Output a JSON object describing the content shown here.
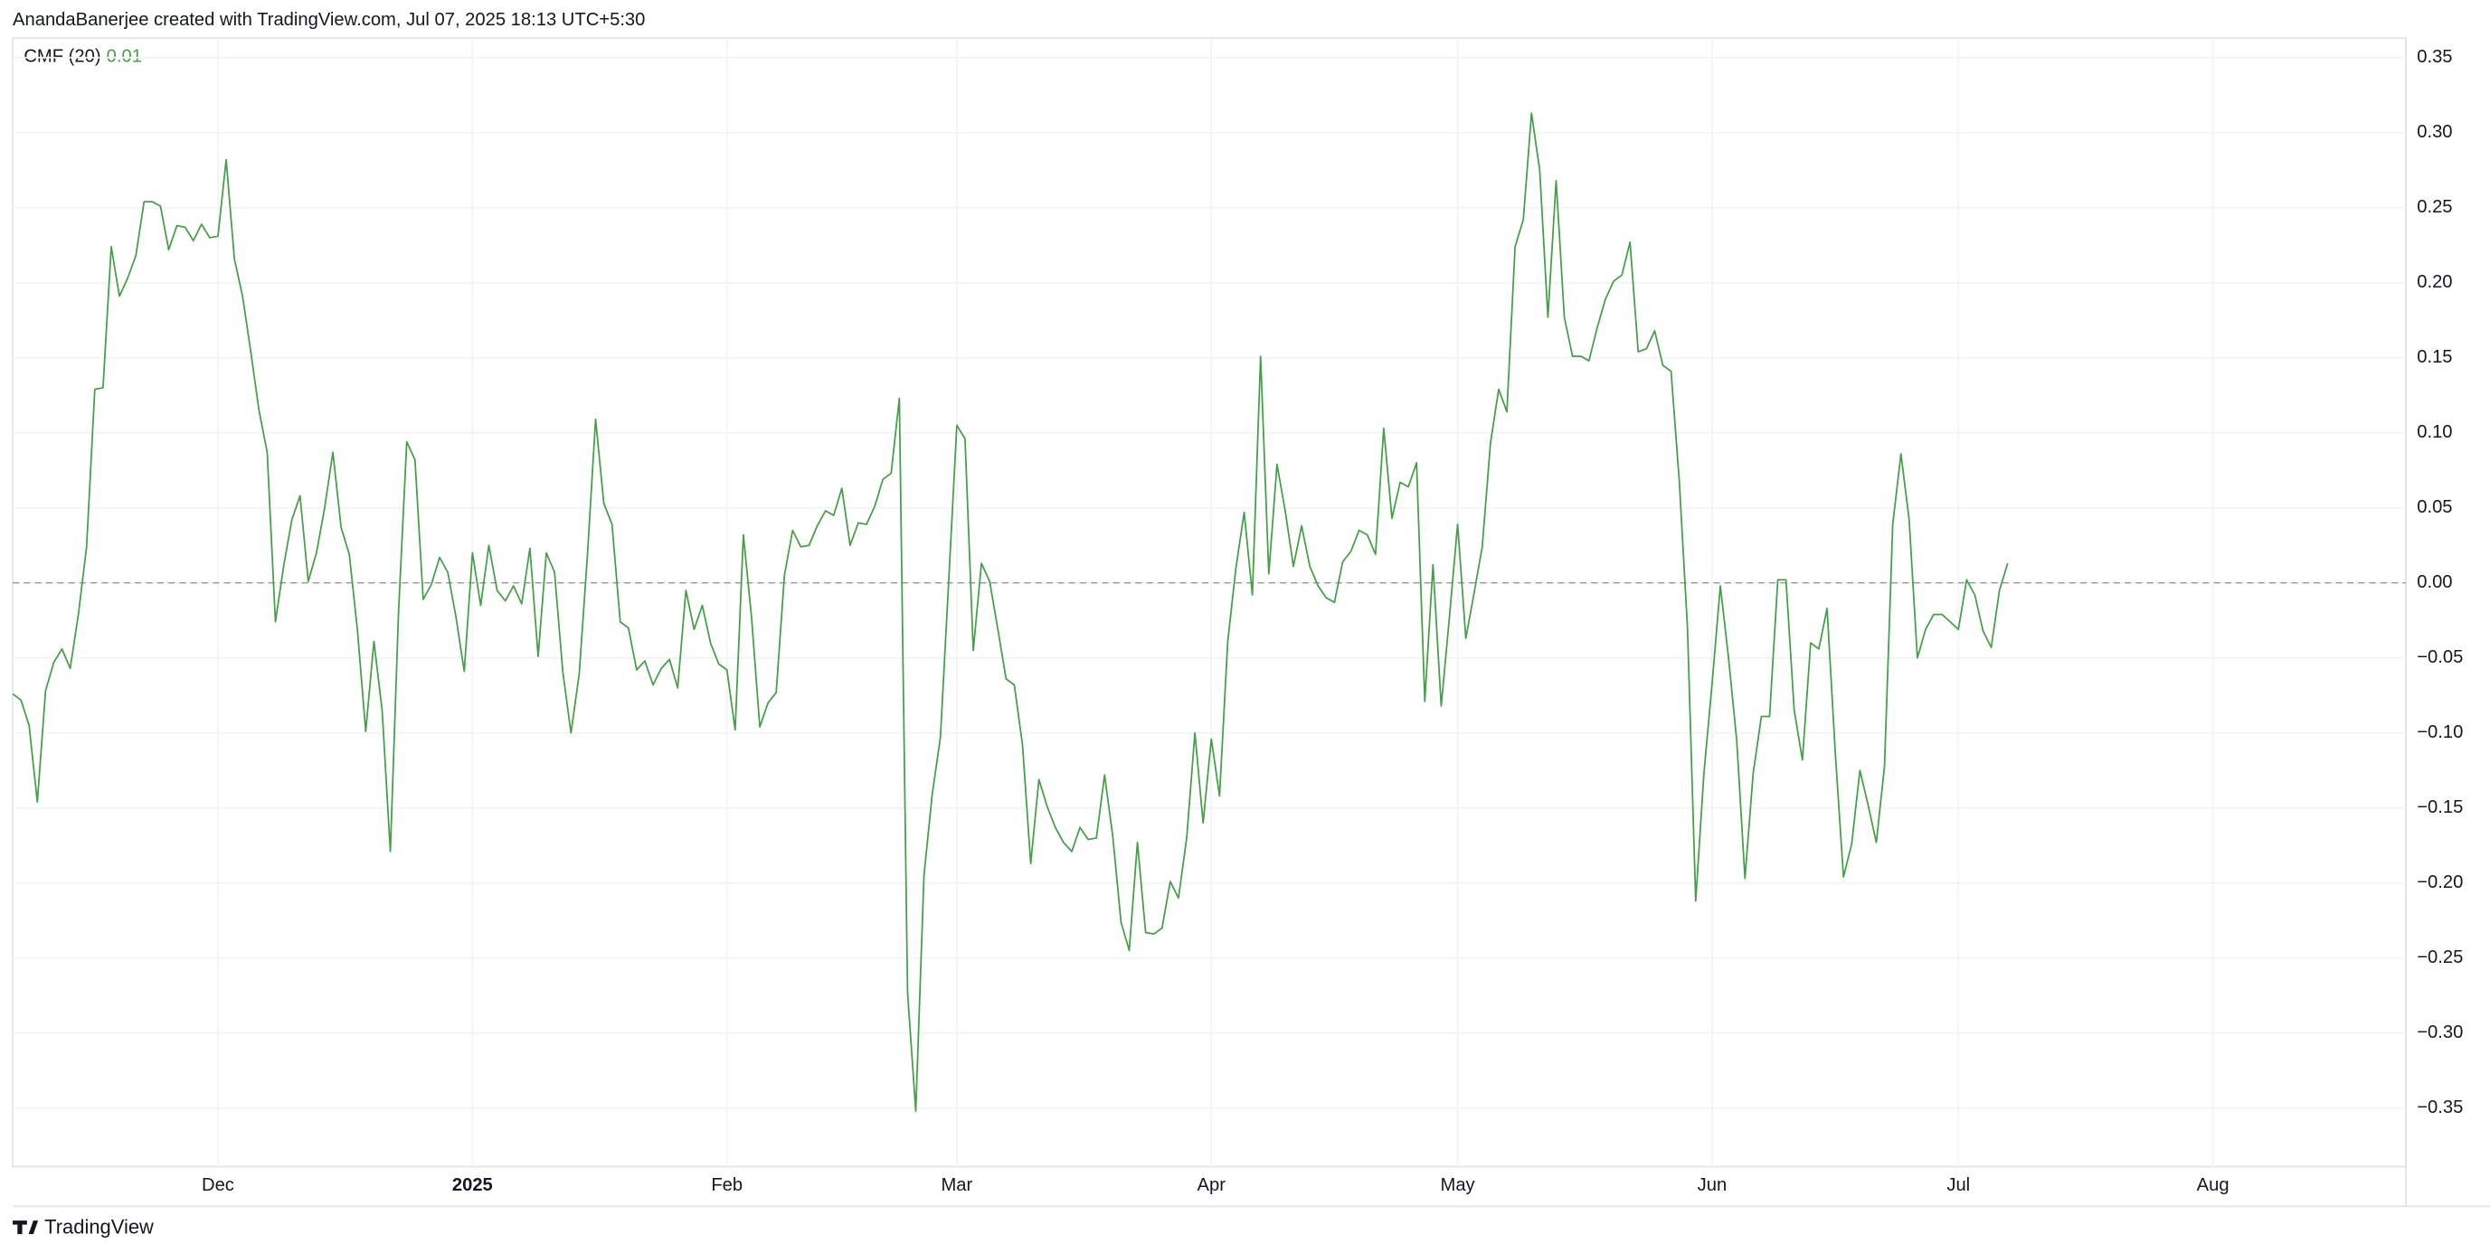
{
  "chart_data": {
    "type": "line",
    "attribution": "AnandaBanerjee created with TradingView.com, Jul 07, 2025 18:13 UTC+5:30",
    "legend": {
      "name": "CMF (20)",
      "last_value": "0.01"
    },
    "brand": "TradingView",
    "series": [
      {
        "name": "CMF (20)",
        "color": "#43a047",
        "values": [
          -0.074,
          -0.078,
          -0.095,
          -0.146,
          -0.072,
          -0.053,
          -0.044,
          -0.057,
          -0.021,
          0.024,
          0.129,
          0.13,
          0.224,
          0.191,
          0.203,
          0.218,
          0.254,
          0.254,
          0.251,
          0.222,
          0.238,
          0.237,
          0.228,
          0.239,
          0.23,
          0.231,
          0.282,
          0.216,
          0.191,
          0.154,
          0.115,
          0.087,
          -0.026,
          0.011,
          0.042,
          0.058,
          0.001,
          0.02,
          0.05,
          0.087,
          0.037,
          0.019,
          -0.032,
          -0.099,
          -0.039,
          -0.085,
          -0.179,
          -0.019,
          0.094,
          0.082,
          -0.011,
          -0.001,
          0.017,
          0.007,
          -0.023,
          -0.059,
          0.02,
          -0.015,
          0.025,
          -0.005,
          -0.012,
          -0.002,
          -0.014,
          0.023,
          -0.049,
          0.02,
          0.007,
          -0.059,
          -0.1,
          -0.061,
          0.018,
          0.109,
          0.053,
          0.039,
          -0.026,
          -0.03,
          -0.058,
          -0.052,
          -0.068,
          -0.057,
          -0.051,
          -0.07,
          -0.005,
          -0.031,
          -0.015,
          -0.04,
          -0.054,
          -0.058,
          -0.098,
          0.032,
          -0.023,
          -0.096,
          -0.08,
          -0.073,
          0.005,
          0.035,
          0.024,
          0.025,
          0.038,
          0.048,
          0.045,
          0.063,
          0.025,
          0.04,
          0.039,
          0.051,
          0.069,
          0.073,
          0.123,
          -0.273,
          -0.352,
          -0.195,
          -0.141,
          -0.103,
          0.0,
          0.105,
          0.096,
          -0.045,
          0.013,
          0.001,
          -0.031,
          -0.064,
          -0.068,
          -0.108,
          -0.187,
          -0.131,
          -0.149,
          -0.163,
          -0.173,
          -0.179,
          -0.163,
          -0.171,
          -0.17,
          -0.128,
          -0.169,
          -0.226,
          -0.245,
          -0.173,
          -0.233,
          -0.234,
          -0.23,
          -0.199,
          -0.21,
          -0.17,
          -0.1,
          -0.16,
          -0.104,
          -0.142,
          -0.039,
          0.01,
          0.047,
          -0.008,
          0.151,
          0.006,
          0.079,
          0.048,
          0.011,
          0.038,
          0.011,
          -0.002,
          -0.01,
          -0.013,
          0.014,
          0.021,
          0.035,
          0.032,
          0.019,
          0.103,
          0.043,
          0.067,
          0.064,
          0.08,
          -0.079,
          0.012,
          -0.082,
          -0.023,
          0.039,
          -0.037,
          -0.007,
          0.024,
          0.093,
          0.129,
          0.114,
          0.224,
          0.242,
          0.313,
          0.275,
          0.177,
          0.268,
          0.177,
          0.151,
          0.151,
          0.148,
          0.17,
          0.189,
          0.201,
          0.205,
          0.227,
          0.154,
          0.156,
          0.168,
          0.145,
          0.141,
          0.068,
          -0.03,
          -0.212,
          -0.127,
          -0.067,
          -0.002,
          -0.05,
          -0.105,
          -0.197,
          -0.127,
          -0.089,
          -0.089,
          0.002,
          0.002,
          -0.085,
          -0.118,
          -0.04,
          -0.044,
          -0.017,
          -0.113,
          -0.196,
          -0.174,
          -0.125,
          -0.148,
          -0.173,
          -0.122,
          0.039,
          0.086,
          0.042,
          -0.05,
          -0.031,
          -0.021,
          -0.021,
          -0.026,
          -0.031,
          0.002,
          -0.008,
          -0.032,
          -0.043,
          -0.005,
          0.013
        ]
      }
    ],
    "hline": 0,
    "xlim": [
      0,
      291.5
    ],
    "xticks": [
      {
        "value": 25,
        "label": "Dec"
      },
      {
        "value": 56,
        "label": "2025"
      },
      {
        "value": 87,
        "label": "Feb"
      },
      {
        "value": 115,
        "label": "Mar"
      },
      {
        "value": 146,
        "label": "Apr"
      },
      {
        "value": 176,
        "label": "May"
      },
      {
        "value": 207,
        "label": "Jun"
      },
      {
        "value": 237,
        "label": "Jul"
      },
      {
        "value": 268,
        "label": "Aug"
      }
    ],
    "ylim": [
      -0.389,
      0.363
    ],
    "yticks": [
      {
        "value": 0.35,
        "label": "0.35"
      },
      {
        "value": 0.3,
        "label": "0.30"
      },
      {
        "value": 0.25,
        "label": "0.25"
      },
      {
        "value": 0.2,
        "label": "0.20"
      },
      {
        "value": 0.15,
        "label": "0.15"
      },
      {
        "value": 0.1,
        "label": "0.10"
      },
      {
        "value": 0.05,
        "label": "0.05"
      },
      {
        "value": 0,
        "label": "0.00"
      },
      {
        "value": -0.05,
        "label": "−0.05"
      },
      {
        "value": -0.1,
        "label": "−0.10"
      },
      {
        "value": -0.15,
        "label": "−0.15"
      },
      {
        "value": -0.2,
        "label": "−0.20"
      },
      {
        "value": -0.25,
        "label": "−0.25"
      },
      {
        "value": -0.3,
        "label": "−0.30"
      },
      {
        "value": -0.35,
        "label": "−0.35"
      }
    ],
    "grid": true
  }
}
